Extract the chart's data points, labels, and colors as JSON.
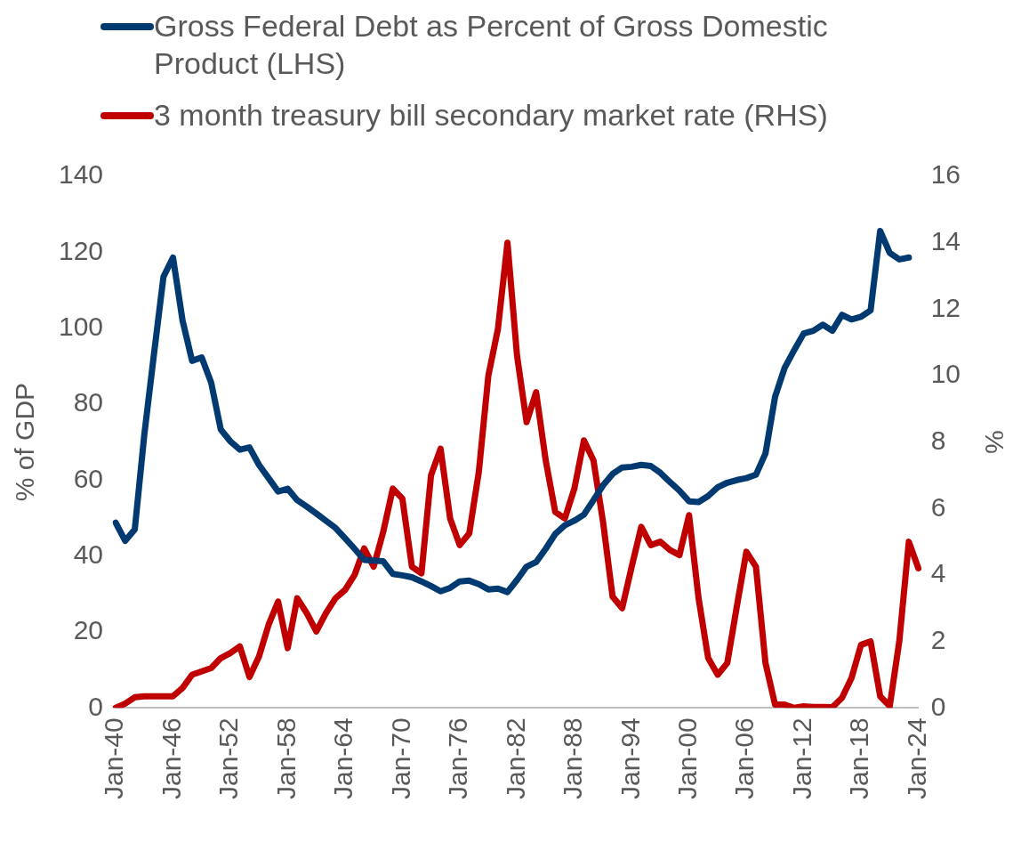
{
  "chart_data": {
    "type": "line",
    "categories": [
      "Jan-40",
      null,
      null,
      null,
      null,
      null,
      "Jan-46",
      null,
      null,
      null,
      null,
      null,
      "Jan-52",
      null,
      null,
      null,
      null,
      null,
      "Jan-58",
      null,
      null,
      null,
      null,
      null,
      "Jan-64",
      null,
      null,
      null,
      null,
      null,
      "Jan-70",
      null,
      null,
      null,
      null,
      null,
      "Jan-76",
      null,
      null,
      null,
      null,
      null,
      "Jan-82",
      null,
      null,
      null,
      null,
      null,
      "Jan-88",
      null,
      null,
      null,
      null,
      null,
      "Jan-94",
      null,
      null,
      null,
      null,
      null,
      "Jan-00",
      null,
      null,
      null,
      null,
      null,
      "Jan-06",
      null,
      null,
      null,
      null,
      null,
      "Jan-12",
      null,
      null,
      null,
      null,
      null,
      "Jan-18",
      null,
      null,
      null,
      null,
      null,
      "Jan-24"
    ],
    "series": [
      {
        "name": "Gross Federal Debt as Percent of Gross Domestic Product (LHS)",
        "color": "#003a70",
        "values": [
          48.8,
          44,
          47,
          72,
          93,
          113.5,
          118.6,
          102,
          91.4,
          92.3,
          85.6,
          73.3,
          70.2,
          68,
          68.6,
          64,
          60.5,
          57,
          57.7,
          54.7,
          53,
          51.2,
          49.3,
          47.4,
          44.7,
          41.9,
          39,
          38.8,
          38.6,
          35.3,
          34.9,
          34.4,
          33.3,
          32.1,
          30.7,
          31.6,
          33.3,
          33.5,
          32.6,
          31.2,
          31.4,
          30.5,
          33.7,
          37.2,
          38.4,
          41.9,
          45.8,
          48.1,
          49.3,
          50.9,
          54.7,
          58.6,
          61.6,
          63.3,
          63.5,
          64,
          63.7,
          61.9,
          59.5,
          57.2,
          54.4,
          54.2,
          55.8,
          58.1,
          59.3,
          60,
          60.5,
          61.4,
          67,
          81.9,
          89.5,
          94.2,
          98.6,
          99.3,
          100.9,
          99.3,
          103.5,
          102.3,
          103,
          104.7,
          125.6,
          119.8,
          118.1,
          118.6,
          null
        ]
      },
      {
        "name": "3 month treasury bill secondary market rate (RHS)",
        "color": "#c00000",
        "axis": "y2",
        "values": [
          0,
          0.13,
          0.32,
          0.35,
          0.35,
          0.35,
          0.35,
          0.6,
          1,
          1.1,
          1.2,
          1.5,
          1.65,
          1.85,
          0.93,
          1.55,
          2.5,
          3.2,
          1.8,
          3.3,
          2.85,
          2.3,
          2.85,
          3.3,
          3.55,
          4,
          4.8,
          4.25,
          5.3,
          6.6,
          6.3,
          4.25,
          4.05,
          7,
          7.8,
          5.7,
          4.9,
          5.25,
          7.1,
          10,
          11.4,
          14,
          10.6,
          8.6,
          9.5,
          7.45,
          5.9,
          5.7,
          6.6,
          8.05,
          7.45,
          5.6,
          3.35,
          3,
          4.25,
          5.45,
          4.9,
          5,
          4.75,
          4.6,
          5.8,
          3.3,
          1.5,
          1,
          1.35,
          3.05,
          4.7,
          4.25,
          1.35,
          0.1,
          0.1,
          0,
          0.05,
          0.03,
          0.03,
          0.02,
          0.3,
          0.9,
          1.9,
          2,
          0.35,
          0.05,
          2,
          5,
          4.2
        ]
      }
    ],
    "ylabel": "% of GDP",
    "y2label": "%",
    "ylim": [
      0,
      140
    ],
    "yticks": [
      0,
      20,
      40,
      60,
      80,
      100,
      120,
      140
    ],
    "y2lim": [
      0,
      16
    ],
    "y2ticks": [
      0,
      2,
      4,
      6,
      8,
      10,
      12,
      14,
      16
    ],
    "grid": false,
    "legend": "top",
    "marker": "none",
    "line_style": "solid"
  }
}
